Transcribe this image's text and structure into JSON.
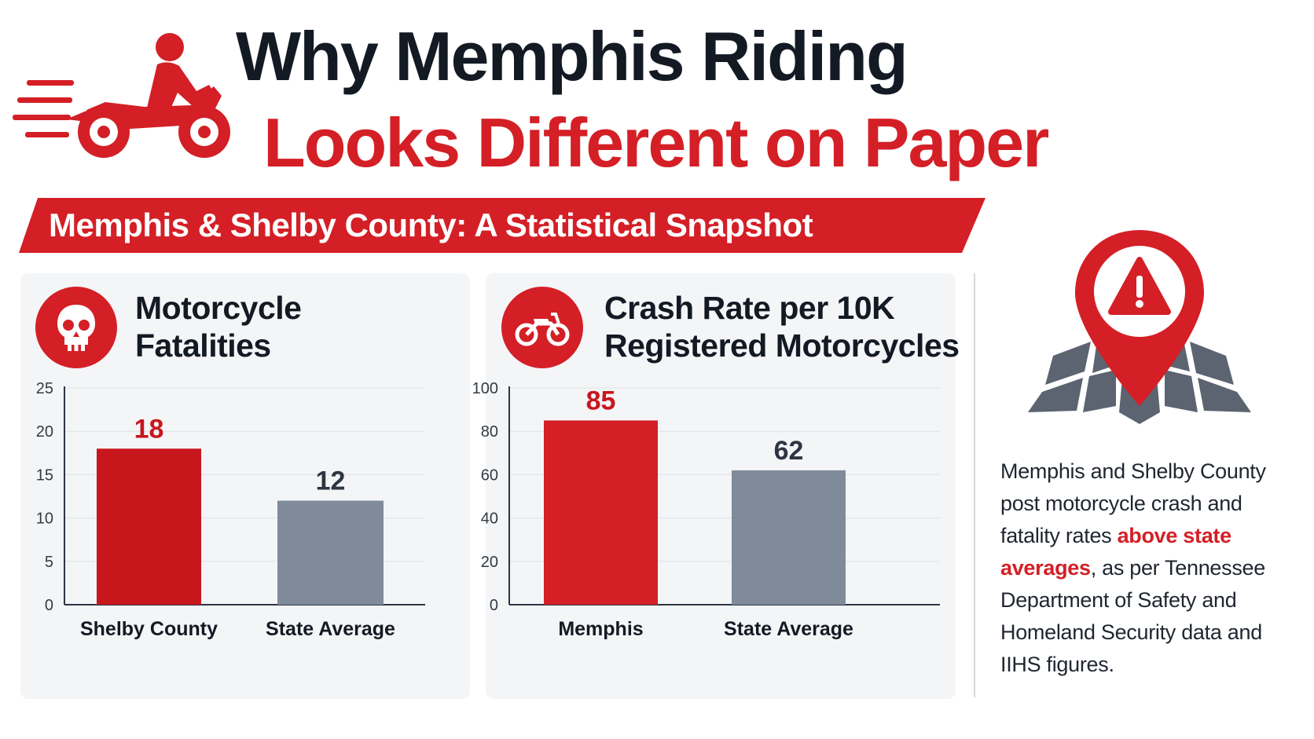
{
  "header": {
    "title_line1": "Why Memphis Riding",
    "title_line2": "Looks Different on Paper"
  },
  "banner": {
    "text": "Memphis & Shelby County: A Statistical Snapshot"
  },
  "panels": [
    {
      "title_line1": "Motorcycle",
      "title_line2": "Fatalities",
      "icon": "skull-icon"
    },
    {
      "title_line1": "Crash Rate per 10K",
      "title_line2": "Registered Motorcycles",
      "icon": "motorcycle-icon"
    }
  ],
  "side": {
    "icon": "map-pin-warning-icon",
    "text_before": "Memphis and Shelby County post motorcycle crash and fatality rates ",
    "text_highlight": "above state averages",
    "text_after": ", as per Tennessee Department of Safety and Homeland Security data and IIHS figures."
  },
  "colors": {
    "accent": "#d41f26",
    "gray_bar": "#7f8b99",
    "dark": "#131a24"
  },
  "chart_data": [
    {
      "type": "bar",
      "title": "Motorcycle Fatalities",
      "categories": [
        "Shelby County",
        "State Average"
      ],
      "values": [
        18,
        12
      ],
      "data_labels": [
        "18",
        "12"
      ],
      "bar_colors": [
        "#c8161d",
        "#7f8b99"
      ],
      "label_colors": [
        "#c8161d",
        "#2d3542"
      ],
      "ylim": [
        0,
        25
      ],
      "yticks": [
        "0",
        "5",
        "10",
        "15",
        "20",
        "25"
      ],
      "grid": true
    },
    {
      "type": "bar",
      "title": "Crash Rate per 10K Registered Motorcycles",
      "categories": [
        "Memphis",
        "State Average"
      ],
      "values": [
        85,
        62
      ],
      "data_labels": [
        "85",
        "62"
      ],
      "bar_colors": [
        "#d41f26",
        "#7f8b99"
      ],
      "label_colors": [
        "#c8161d",
        "#2d3542"
      ],
      "ylim": [
        0,
        100
      ],
      "yticks": [
        "0",
        "20",
        "40",
        "60",
        "80",
        "100"
      ],
      "grid": true
    }
  ]
}
